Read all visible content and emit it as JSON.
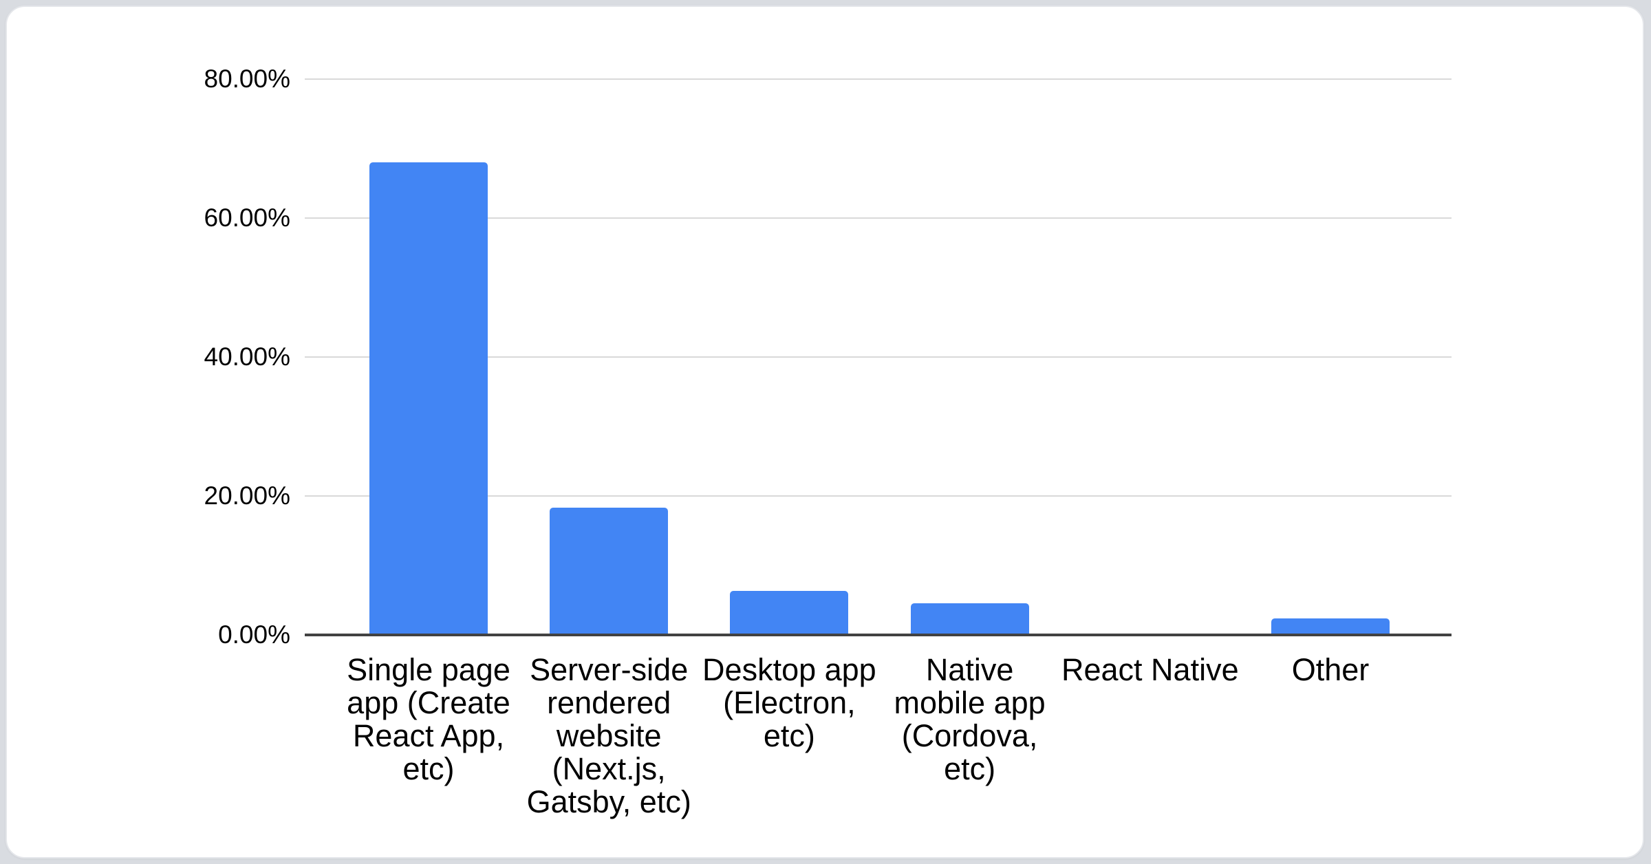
{
  "page": {
    "background_color": "#d9dce1",
    "card_background_color": "#ffffff",
    "card_border_color": "#e4e6ea"
  },
  "chart_data": {
    "type": "bar",
    "title": "",
    "categories": [
      "Single page app (Create React App, etc)",
      "Server-side rendered website (Next.js, Gatsby, etc)",
      "Desktop app (Electron, etc)",
      "Native mobile app (Cordova, etc)",
      "React Native",
      "Other"
    ],
    "category_slugs": [
      "single-page-app",
      "server-side-rendered-website",
      "desktop-app",
      "native-mobile-app",
      "react-native",
      "other"
    ],
    "values": [
      68.0,
      18.3,
      6.3,
      4.6,
      0,
      2.4
    ],
    "unit": "%",
    "bar_color": "#4285f4",
    "grid": true,
    "legend": "none",
    "y_axis": {
      "min": 0,
      "max": 80,
      "ticks": [
        {
          "label": "80.00%",
          "value": 80
        },
        {
          "label": "60.00%",
          "value": 60
        },
        {
          "label": "40.00%",
          "value": 40
        },
        {
          "label": "20.00%",
          "value": 20
        },
        {
          "label": "0.00%",
          "value": 0
        }
      ]
    },
    "axis_colors": {
      "gridline": "#d9d9d9",
      "baseline": "#424242",
      "tick_text": "#000000",
      "label_text": "#000000"
    }
  }
}
